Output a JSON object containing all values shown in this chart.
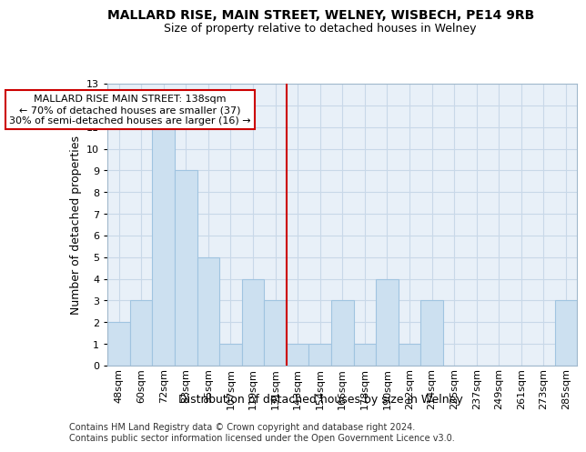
{
  "title1": "MALLARD RISE, MAIN STREET, WELNEY, WISBECH, PE14 9RB",
  "title2": "Size of property relative to detached houses in Welney",
  "xlabel": "Distribution of detached houses by size in Welney",
  "ylabel": "Number of detached properties",
  "footnote1": "Contains HM Land Registry data © Crown copyright and database right 2024.",
  "footnote2": "Contains public sector information licensed under the Open Government Licence v3.0.",
  "bar_labels": [
    "48sqm",
    "60sqm",
    "72sqm",
    "83sqm",
    "95sqm",
    "107sqm",
    "119sqm",
    "131sqm",
    "143sqm",
    "154sqm",
    "166sqm",
    "178sqm",
    "190sqm",
    "202sqm",
    "214sqm",
    "225sqm",
    "237sqm",
    "249sqm",
    "261sqm",
    "273sqm",
    "285sqm"
  ],
  "bar_values": [
    2,
    3,
    11,
    9,
    5,
    1,
    4,
    3,
    1,
    1,
    3,
    1,
    4,
    1,
    3,
    0,
    0,
    0,
    0,
    0,
    3
  ],
  "bar_color": "#cce0f0",
  "bar_edge_color": "#a0c4e0",
  "grid_color": "#c8d8e8",
  "background_color": "#e8f0f8",
  "vline_color": "#cc0000",
  "annotation_text": "MALLARD RISE MAIN STREET: 138sqm\n← 70% of detached houses are smaller (37)\n30% of semi-detached houses are larger (16) →",
  "annotation_box_edge": "#cc0000",
  "ylim": [
    0,
    13
  ],
  "yticks": [
    0,
    1,
    2,
    3,
    4,
    5,
    6,
    7,
    8,
    9,
    10,
    11,
    12,
    13
  ],
  "title1_fontsize": 10,
  "title2_fontsize": 9,
  "ylabel_fontsize": 9,
  "xlabel_fontsize": 9,
  "tick_fontsize": 8,
  "annot_fontsize": 8,
  "footnote_fontsize": 7
}
